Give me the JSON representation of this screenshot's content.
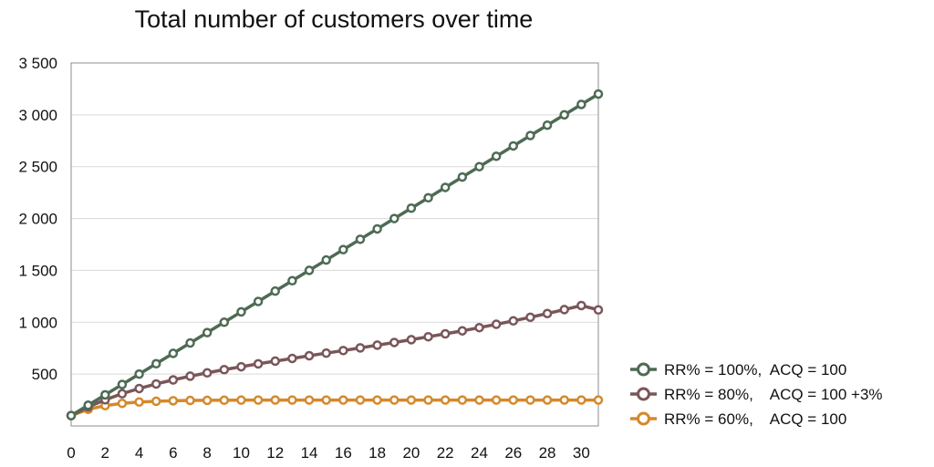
{
  "chart_data": {
    "type": "line",
    "title": "Total number of customers over time",
    "xlabel": "",
    "ylabel": "",
    "xlim": [
      0,
      31
    ],
    "ylim": [
      0,
      3500
    ],
    "x_ticks": [
      0,
      2,
      4,
      6,
      8,
      10,
      12,
      14,
      16,
      18,
      20,
      22,
      24,
      26,
      28,
      30
    ],
    "x_tick_labels": [
      "0",
      "2",
      "4",
      "6",
      "8",
      "10",
      "12",
      "14",
      "16",
      "18",
      "20",
      "22",
      "24",
      "26",
      "28",
      "30"
    ],
    "y_ticks": [
      500,
      1000,
      1500,
      2000,
      2500,
      3000,
      3500
    ],
    "y_tick_labels": [
      "500",
      "1 000",
      "1 500",
      "2 000",
      "2 500",
      "3 000",
      "3 500"
    ],
    "grid": "horizontal",
    "legend_position": "right",
    "x": [
      0,
      1,
      2,
      3,
      4,
      5,
      6,
      7,
      8,
      9,
      10,
      11,
      12,
      13,
      14,
      15,
      16,
      17,
      18,
      19,
      20,
      21,
      22,
      23,
      24,
      25,
      26,
      27,
      28,
      29,
      30,
      31
    ],
    "series": [
      {
        "name": "RR% = 100%,  ACQ = 100",
        "color": "#4e6b55",
        "values": [
          100,
          200,
          300,
          400,
          500,
          600,
          700,
          800,
          900,
          1000,
          1100,
          1200,
          1300,
          1400,
          1500,
          1600,
          1700,
          1800,
          1900,
          2000,
          2100,
          2200,
          2300,
          2400,
          2500,
          2600,
          2700,
          2800,
          2900,
          3000,
          3100,
          3200
        ]
      },
      {
        "name": "RR% = 80%,    ACQ = 100 +3%",
        "color": "#7a5659",
        "values": [
          100,
          183,
          252,
          311,
          361,
          405,
          444,
          480,
          512,
          543,
          571,
          599,
          625,
          651,
          677,
          702,
          727,
          753,
          779,
          805,
          832,
          860,
          888,
          917,
          948,
          980,
          1013,
          1048,
          1084,
          1122,
          1161,
          1119
        ]
      },
      {
        "name": "RR% = 60%,    ACQ = 100",
        "color": "#d4892d",
        "values": [
          100,
          160,
          196,
          218,
          231,
          238,
          243,
          246,
          247,
          248,
          249,
          250,
          250,
          250,
          250,
          250,
          250,
          250,
          250,
          250,
          250,
          250,
          250,
          250,
          250,
          250,
          250,
          250,
          250,
          250,
          250,
          250
        ]
      }
    ]
  }
}
